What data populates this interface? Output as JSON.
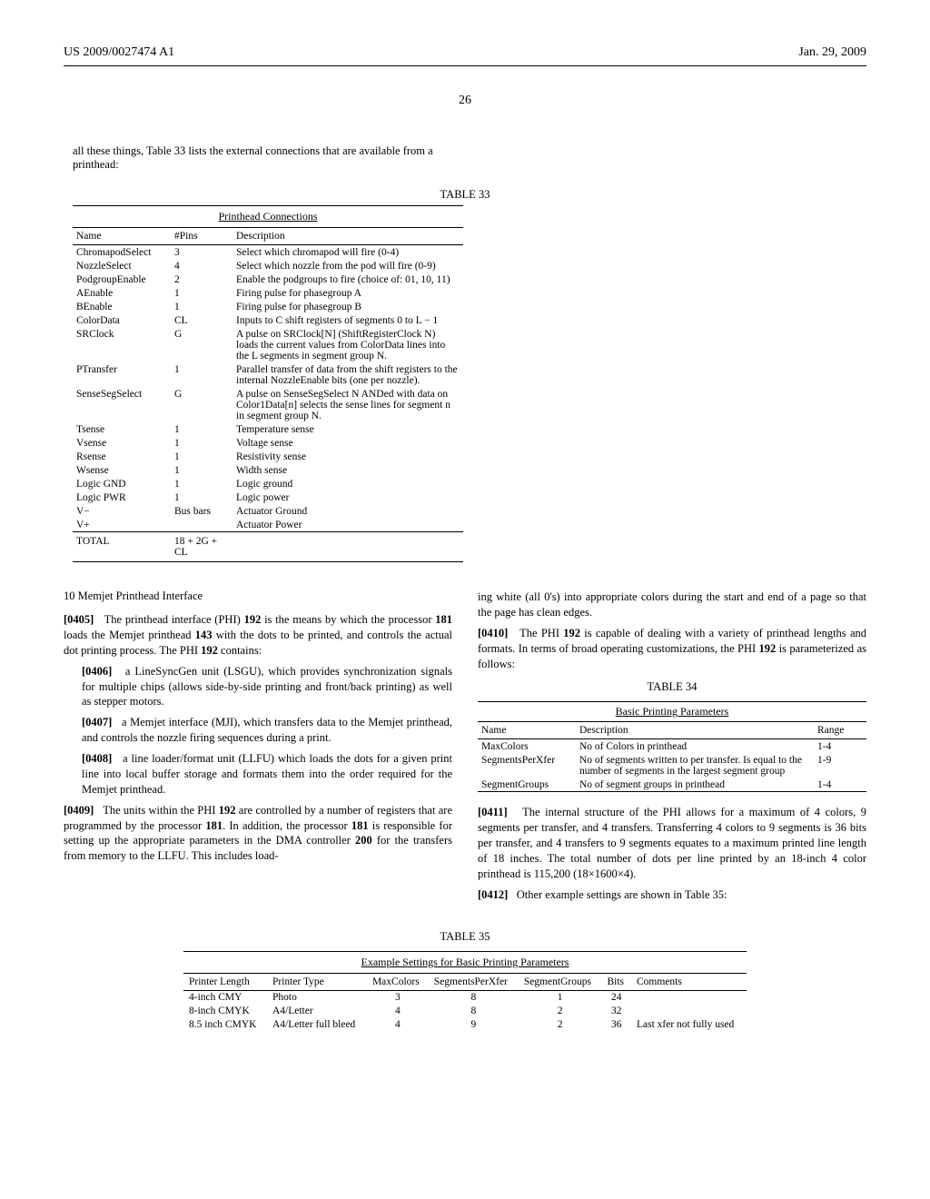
{
  "header": {
    "left": "US 2009/0027474 A1",
    "right": "Jan. 29, 2009"
  },
  "pageNumber": "26",
  "introText": "all these things, Table 33 lists the external connections that are available from a printhead:",
  "table33": {
    "caption": "TABLE 33",
    "title": "Printhead Connections",
    "headers": [
      "Name",
      "#Pins",
      "Description"
    ],
    "rows": [
      [
        "ChromapodSelect",
        "3",
        "Select which chromapod will fire (0-4)"
      ],
      [
        "NozzleSelect",
        "4",
        "Select which nozzle from the pod will fire (0-9)"
      ],
      [
        "PodgroupEnable",
        "2",
        "Enable the podgroups to fire (choice of: 01, 10, 11)"
      ],
      [
        "AEnable",
        "1",
        "Firing pulse for phasegroup A"
      ],
      [
        "BEnable",
        "1",
        "Firing pulse for phasegroup B"
      ],
      [
        "ColorData",
        "CL",
        "Inputs to C shift registers of segments 0 to L − 1"
      ],
      [
        "SRClock",
        "G",
        "A pulse on SRClock[N] (ShiftRegisterClock N) loads the current values from ColorData lines into the L segments in segment group N."
      ],
      [
        "PTransfer",
        "1",
        "Parallel transfer of data from the shift registers to the internal NozzleEnable bits (one per nozzle)."
      ],
      [
        "SenseSegSelect",
        "G",
        "A pulse on SenseSegSelect N ANDed with data on Color1Data[n] selects the sense lines for segment n in segment group N."
      ],
      [
        "Tsense",
        "1",
        "Temperature sense"
      ],
      [
        "Vsense",
        "1",
        "Voltage sense"
      ],
      [
        "Rsense",
        "1",
        "Resistivity sense"
      ],
      [
        "Wsense",
        "1",
        "Width sense"
      ],
      [
        "Logic GND",
        "1",
        "Logic ground"
      ],
      [
        "Logic PWR",
        "1",
        "Logic power"
      ],
      [
        "V−",
        "Bus bars",
        "Actuator Ground"
      ],
      [
        "V+",
        "",
        "Actuator Power"
      ]
    ],
    "totalRow": [
      "TOTAL",
      "18 + 2G + CL",
      ""
    ]
  },
  "leftColumn": {
    "sectionHeading": "10 Memjet Printhead Interface",
    "p0405": "[0405]   The printhead interface (PHI) 192 is the means by which the processor 181 loads the Memjet printhead 143 with the dots to be printed, and controls the actual dot printing process. The PHI 192 contains:",
    "p0406": "[0406]   a LineSyncGen unit (LSGU), which provides synchronization signals for multiple chips (allows side-by-side printing and front/back printing) as well as stepper motors.",
    "p0407": "[0407]   a Memjet interface (MJI), which transfers data to the Memjet printhead, and controls the nozzle firing sequences during a print.",
    "p0408": "[0408]   a line loader/format unit (LLFU) which loads the dots for a given print line into local buffer storage and formats them into the order required for the Memjet printhead.",
    "p0409": "[0409]   The units within the PHI 192 are controlled by a number of registers that are programmed by the processor 181. In addition, the processor 181 is responsible for setting up the appropriate parameters in the DMA controller 200 for the transfers from memory to the LLFU. This includes load-"
  },
  "rightColumn": {
    "cont": "ing white (all 0's) into appropriate colors during the start and end of a page so that the page has clean edges.",
    "p0410": "[0410]   The PHI 192 is capable of dealing with a variety of printhead lengths and formats. In terms of broad operating customizations, the PHI 192 is parameterized as follows:",
    "table34": {
      "caption": "TABLE 34",
      "title": "Basic Printing Parameters",
      "headers": [
        "Name",
        "Description",
        "Range"
      ],
      "rows": [
        [
          "MaxColors",
          "No of Colors in printhead",
          "1-4"
        ],
        [
          "SegmentsPerXfer",
          "No of segments written to per transfer. Is equal to the number of segments in the largest segment group",
          "1-9"
        ],
        [
          "SegmentGroups",
          "No of segment groups in printhead",
          "1-4"
        ]
      ]
    },
    "p0411": "[0411]   The internal structure of the PHI allows for a maximum of 4 colors, 9 segments per transfer, and 4 transfers. Transferring 4 colors to 9 segments is 36 bits per transfer, and 4 transfers to 9 segments equates to a maximum printed line length of 18 inches. The total number of dots per line printed by an 18-inch 4 color printhead is 115,200 (18×1600×4).",
    "p0412": "[0412]   Other example settings are shown in Table 35:"
  },
  "table35": {
    "caption": "TABLE 35",
    "title": "Example Settings for Basic Printing Parameters",
    "headers": [
      "Printer Length",
      "Printer Type",
      "MaxColors",
      "SegmentsPerXfer",
      "SegmentGroups",
      "Bits",
      "Comments"
    ],
    "rows": [
      [
        "4-inch CMY",
        "Photo",
        "3",
        "8",
        "1",
        "24",
        ""
      ],
      [
        "8-inch CMYK",
        "A4/Letter",
        "4",
        "8",
        "2",
        "32",
        ""
      ],
      [
        "8.5 inch CMYK",
        "A4/Letter full bleed",
        "4",
        "9",
        "2",
        "36",
        "Last xfer not fully used"
      ]
    ]
  }
}
